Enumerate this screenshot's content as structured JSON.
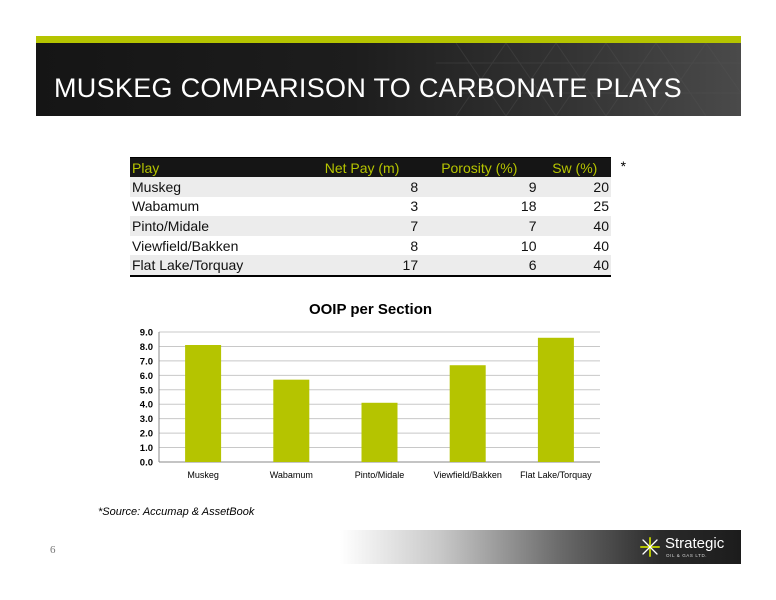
{
  "header": {
    "title": "MUSKEG COMPARISON TO CARBONATE PLAYS"
  },
  "table": {
    "headers": [
      "Play",
      "Net Pay (m)",
      "Porosity (%)",
      "Sw (%)"
    ],
    "rows": [
      [
        "Muskeg",
        "8",
        "9",
        "20"
      ],
      [
        "Wabamum",
        "3",
        "18",
        "25"
      ],
      [
        "Pinto/Midale",
        "7",
        "7",
        "40"
      ],
      [
        "Viewfield/Bakken",
        "8",
        "10",
        "40"
      ],
      [
        "Flat Lake/Torquay",
        "17",
        "6",
        "40"
      ]
    ],
    "note_marker": "*"
  },
  "chart_data": {
    "type": "bar",
    "title": "OOIP per Section",
    "categories": [
      "Muskeg",
      "Wabamum",
      "Pinto/Midale",
      "Viewfield/Bakken",
      "Flat Lake/Torquay"
    ],
    "values": [
      8.1,
      5.7,
      4.1,
      6.7,
      8.6
    ],
    "ylim": [
      0,
      9
    ],
    "yticks": [
      "0.0",
      "1.0",
      "2.0",
      "3.0",
      "4.0",
      "5.0",
      "6.0",
      "7.0",
      "8.0",
      "9.0"
    ],
    "grid": true,
    "bar_color": "#b5c400"
  },
  "source": "*Source:  Accumap & AssetBook",
  "page_number": "6",
  "logo": {
    "name": "Strategic",
    "subtitle": "OIL & GAS LTD."
  },
  "colors": {
    "accent": "#b5c400",
    "header_bg": "#151515"
  }
}
